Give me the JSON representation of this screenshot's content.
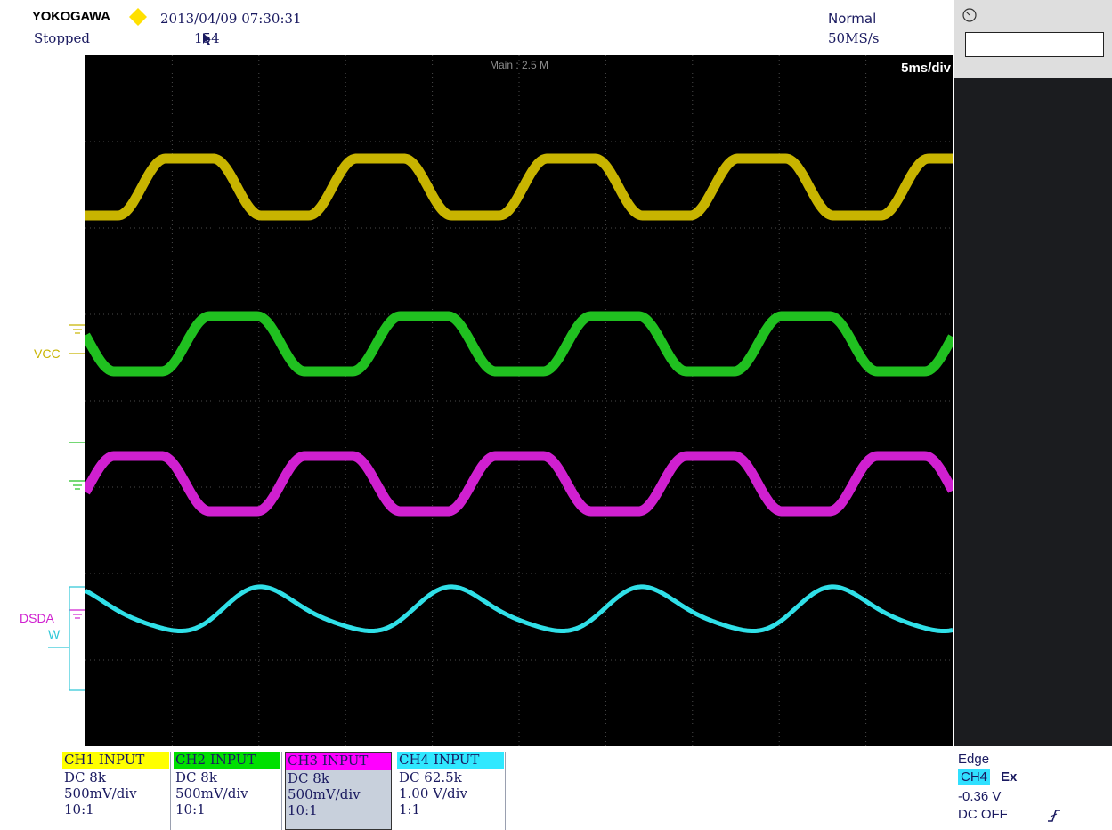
{
  "header": {
    "brand": "YOKOGAWA",
    "datetime": "2013/04/09 07:30:31",
    "status": "Stopped",
    "record": "154",
    "mode": "Normal",
    "sample_rate": "50MS/s",
    "main_label": "Main : 2.5 M",
    "timebase": "5ms/div"
  },
  "markers": {
    "vcc": "VCC",
    "dsda": "DSDA",
    "w": "W"
  },
  "colors": {
    "ch1": "#c8b400",
    "ch2": "#20c020",
    "ch3": "#d020d0",
    "ch4": "#30e0e8",
    "ch1_tag": "#ffff00",
    "ch2_tag": "#00e000",
    "ch3_tag": "#ff00ff",
    "ch4_tag": "#30e8ff"
  },
  "channels": [
    {
      "title": "CH1 INPUT",
      "coupling": "DC 8k",
      "scale": "500mV/div",
      "probe": "10:1"
    },
    {
      "title": "CH2 INPUT",
      "coupling": "DC 8k",
      "scale": "500mV/div",
      "probe": "10:1"
    },
    {
      "title": "CH3 INPUT",
      "coupling": "DC 8k",
      "scale": "500mV/div",
      "probe": "10:1"
    },
    {
      "title": "CH4 INPUT",
      "coupling": "DC 62.5k",
      "scale": "1.00 V/div",
      "probe": "1:1"
    }
  ],
  "trigger": {
    "type": "Edge",
    "channel": "CH4",
    "source": "Ex",
    "level": "-0.36 V",
    "coupling": "DC OFF"
  },
  "icons": {
    "clock": "clock-icon",
    "trigger_edge": "edge-slope-icon",
    "brand_marker": "diamond-icon"
  }
}
